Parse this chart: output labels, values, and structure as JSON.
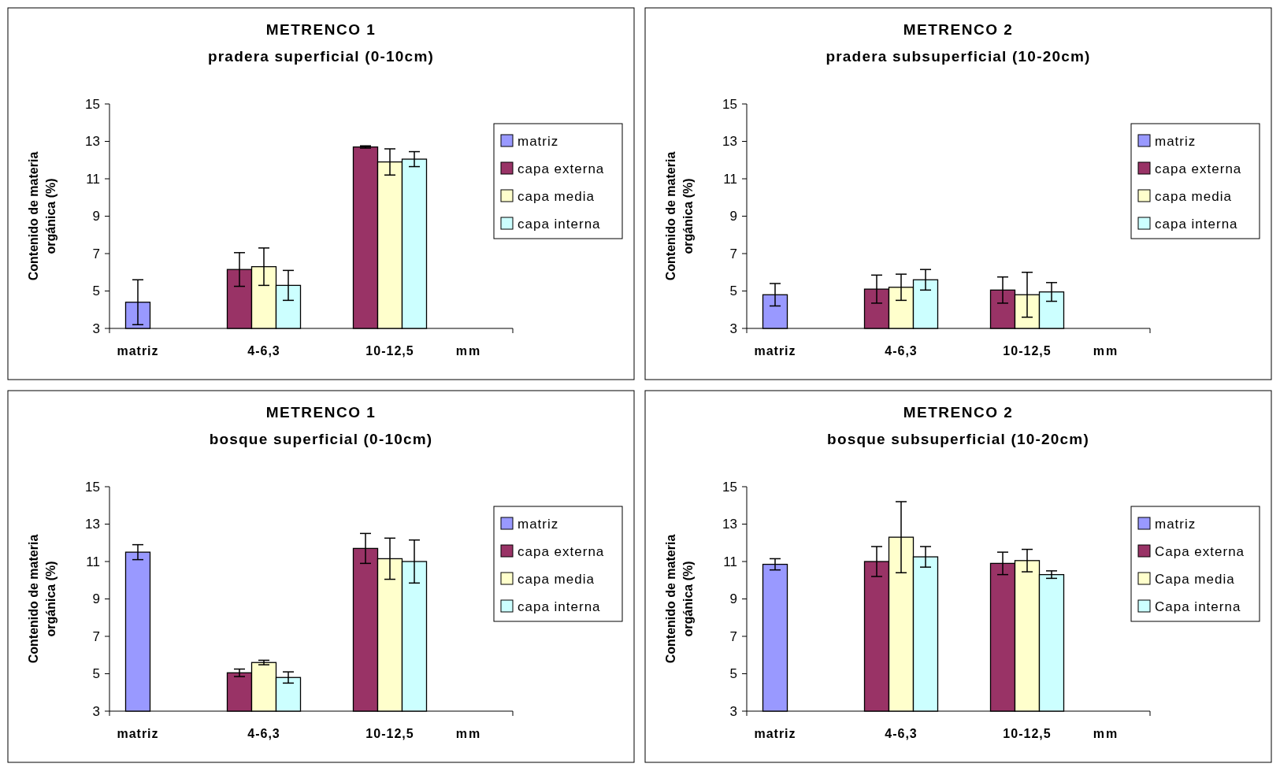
{
  "chart_data": [
    {
      "type": "bar",
      "title": "METRENCO 1",
      "subtitle": "pradera superficial (0-10cm)",
      "xlabel": "mm",
      "ylabel": "Contenido de materia\norgánica (%)",
      "categories": [
        "matriz",
        "4-6,3",
        "10-12,5"
      ],
      "ylim": [
        3,
        15
      ],
      "yticks": [
        3,
        5,
        7,
        9,
        11,
        13,
        15
      ],
      "legend": "right",
      "series": [
        {
          "name": "matriz",
          "color": "#9999ff",
          "values": [
            4.4,
            null,
            null
          ],
          "errors": [
            1.2,
            null,
            null
          ]
        },
        {
          "name": "capa externa",
          "color": "#993366",
          "values": [
            null,
            6.15,
            12.7
          ],
          "errors": [
            null,
            0.9,
            0.06
          ]
        },
        {
          "name": "capa media",
          "color": "#ffffcc",
          "values": [
            null,
            6.3,
            11.9
          ],
          "errors": [
            null,
            1.0,
            0.7
          ]
        },
        {
          "name": "capa interna",
          "color": "#ccffff",
          "values": [
            null,
            5.3,
            12.05
          ],
          "errors": [
            null,
            0.8,
            0.4
          ]
        }
      ]
    },
    {
      "type": "bar",
      "title": "METRENCO 2",
      "subtitle": "pradera subsuperficial (10-20cm)",
      "xlabel": "mm",
      "ylabel": "Contenido de materia\norgánica (%)",
      "categories": [
        "matriz",
        "4-6,3",
        "10-12,5"
      ],
      "ylim": [
        3,
        15
      ],
      "yticks": [
        3,
        5,
        7,
        9,
        11,
        13,
        15
      ],
      "legend": "right",
      "series": [
        {
          "name": "matriz",
          "color": "#9999ff",
          "values": [
            4.8,
            null,
            null
          ],
          "errors": [
            0.6,
            null,
            null
          ]
        },
        {
          "name": "capa externa",
          "color": "#993366",
          "values": [
            null,
            5.1,
            5.05
          ],
          "errors": [
            null,
            0.75,
            0.7
          ]
        },
        {
          "name": "capa media",
          "color": "#ffffcc",
          "values": [
            null,
            5.2,
            4.8
          ],
          "errors": [
            null,
            0.7,
            1.2
          ]
        },
        {
          "name": "capa interna",
          "color": "#ccffff",
          "values": [
            null,
            5.6,
            4.95
          ],
          "errors": [
            null,
            0.55,
            0.5
          ]
        }
      ]
    },
    {
      "type": "bar",
      "title": "METRENCO 1",
      "subtitle": "bosque superficial (0-10cm)",
      "xlabel": "mm",
      "ylabel": "Contenido de materia\norgánica (%)",
      "categories": [
        "matriz",
        "4-6,3",
        "10-12,5"
      ],
      "ylim": [
        3,
        15
      ],
      "yticks": [
        3,
        5,
        7,
        9,
        11,
        13,
        15
      ],
      "legend": "right",
      "series": [
        {
          "name": "matriz",
          "color": "#9999ff",
          "values": [
            11.5,
            null,
            null
          ],
          "errors": [
            0.4,
            null,
            null
          ]
        },
        {
          "name": "capa externa",
          "color": "#993366",
          "values": [
            null,
            5.05,
            11.7
          ],
          "errors": [
            null,
            0.2,
            0.8
          ]
        },
        {
          "name": "capa media",
          "color": "#ffffcc",
          "values": [
            null,
            5.6,
            11.15
          ],
          "errors": [
            null,
            0.12,
            1.1
          ]
        },
        {
          "name": "capa interna",
          "color": "#ccffff",
          "values": [
            null,
            4.8,
            11.0
          ],
          "errors": [
            null,
            0.3,
            1.15
          ]
        }
      ]
    },
    {
      "type": "bar",
      "title": "METRENCO 2",
      "subtitle": "bosque subsuperficial (10-20cm)",
      "xlabel": "mm",
      "ylabel": "Contenido de materia\norgánica (%)",
      "categories": [
        "matriz",
        "4-6,3",
        "10-12,5"
      ],
      "ylim": [
        3,
        15
      ],
      "yticks": [
        3,
        5,
        7,
        9,
        11,
        13,
        15
      ],
      "legend": "right",
      "series": [
        {
          "name": "matriz",
          "color": "#9999ff",
          "values": [
            10.85,
            null,
            null
          ],
          "errors": [
            0.3,
            null,
            null
          ]
        },
        {
          "name": "Capa externa",
          "color": "#993366",
          "values": [
            null,
            11.0,
            10.9
          ],
          "errors": [
            null,
            0.8,
            0.6
          ]
        },
        {
          "name": "Capa media",
          "color": "#ffffcc",
          "values": [
            null,
            12.3,
            11.05
          ],
          "errors": [
            null,
            1.9,
            0.6
          ]
        },
        {
          "name": "Capa interna",
          "color": "#ccffff",
          "values": [
            null,
            11.25,
            10.3
          ],
          "errors": [
            null,
            0.55,
            0.2
          ]
        }
      ]
    }
  ]
}
